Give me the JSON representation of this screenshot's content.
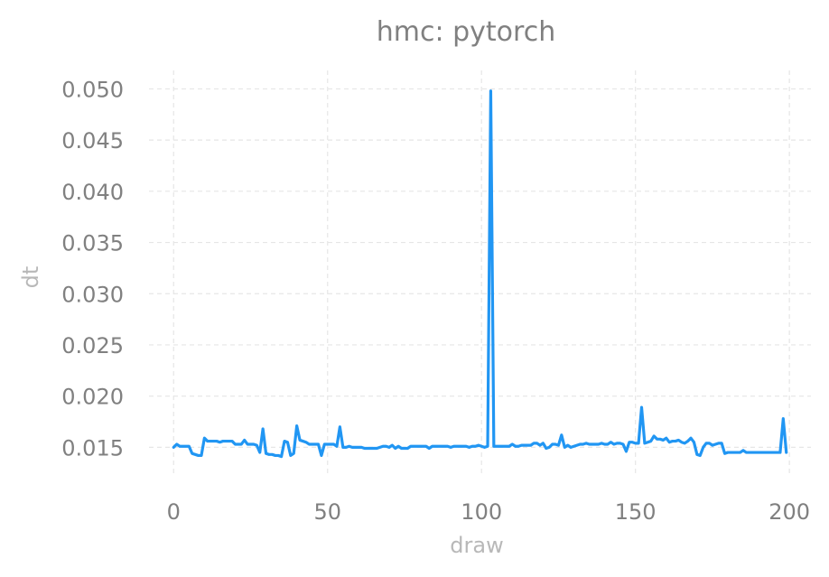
{
  "chart_data": {
    "type": "line",
    "title": "hmc: pytorch",
    "xlabel": "draw",
    "ylabel": "dt",
    "xlim": [
      -8,
      207
    ],
    "ylim": [
      0.0123,
      0.0518
    ],
    "xticks": [
      0,
      50,
      100,
      150,
      200
    ],
    "xtick_labels": [
      "0",
      "50",
      "100",
      "150",
      "200"
    ],
    "yticks": [
      0.015,
      0.02,
      0.025,
      0.03,
      0.035,
      0.04,
      0.045,
      0.05
    ],
    "ytick_labels": [
      "0.015",
      "0.020",
      "0.025",
      "0.030",
      "0.035",
      "0.040",
      "0.045",
      "0.050"
    ],
    "grid": true,
    "line_color": "#2196f3",
    "series": [
      {
        "x": [
          0,
          1,
          2,
          3,
          4,
          5,
          6,
          7,
          8,
          9,
          10,
          11,
          12,
          13,
          14,
          15,
          16,
          17,
          18,
          19,
          20,
          21,
          22,
          23,
          24,
          25,
          26,
          27,
          28,
          29,
          30,
          31,
          32,
          33,
          34,
          35,
          36,
          37,
          38,
          39,
          40,
          41,
          42,
          43,
          44,
          45,
          46,
          47,
          48,
          49,
          50,
          51,
          52,
          53,
          54,
          55,
          56,
          57,
          58,
          59,
          60,
          61,
          62,
          63,
          64,
          65,
          66,
          67,
          68,
          69,
          70,
          71,
          72,
          73,
          74,
          75,
          76,
          77,
          78,
          79,
          80,
          81,
          82,
          83,
          84,
          85,
          86,
          87,
          88,
          89,
          90,
          91,
          92,
          93,
          94,
          95,
          96,
          97,
          98,
          99,
          100,
          101,
          102,
          103,
          104,
          105,
          106,
          107,
          108,
          109,
          110,
          111,
          112,
          113,
          114,
          115,
          116,
          117,
          118,
          119,
          120,
          121,
          122,
          123,
          124,
          125,
          126,
          127,
          128,
          129,
          130,
          131,
          132,
          133,
          134,
          135,
          136,
          137,
          138,
          139,
          140,
          141,
          142,
          143,
          144,
          145,
          146,
          147,
          148,
          149,
          150,
          151,
          152,
          153,
          154,
          155,
          156,
          157,
          158,
          159,
          160,
          161,
          162,
          163,
          164,
          165,
          166,
          167,
          168,
          169,
          170,
          171,
          172,
          173,
          174,
          175,
          176,
          177,
          178,
          179,
          180,
          181,
          182,
          183,
          184,
          185,
          186,
          187,
          188,
          189,
          190,
          191,
          192,
          193,
          194,
          195,
          196,
          197,
          198,
          199
        ],
        "values": [
          0.015,
          0.0153,
          0.0151,
          0.0151,
          0.0151,
          0.0151,
          0.0144,
          0.0143,
          0.0142,
          0.0142,
          0.0159,
          0.0156,
          0.0156,
          0.0156,
          0.0156,
          0.0155,
          0.0156,
          0.0156,
          0.0156,
          0.0156,
          0.0153,
          0.0153,
          0.0153,
          0.0157,
          0.0153,
          0.0153,
          0.0153,
          0.0152,
          0.0145,
          0.0168,
          0.0144,
          0.0143,
          0.0143,
          0.0142,
          0.0142,
          0.0141,
          0.0156,
          0.0155,
          0.0142,
          0.0144,
          0.0171,
          0.0157,
          0.0156,
          0.0155,
          0.0153,
          0.0153,
          0.0153,
          0.0153,
          0.0142,
          0.0153,
          0.0153,
          0.0153,
          0.0153,
          0.0151,
          0.017,
          0.015,
          0.015,
          0.0151,
          0.015,
          0.015,
          0.015,
          0.015,
          0.0149,
          0.0149,
          0.0149,
          0.0149,
          0.0149,
          0.015,
          0.0151,
          0.0151,
          0.015,
          0.0152,
          0.0149,
          0.0151,
          0.0149,
          0.0149,
          0.0149,
          0.0151,
          0.0151,
          0.0151,
          0.0151,
          0.0151,
          0.0151,
          0.0149,
          0.0151,
          0.0151,
          0.0151,
          0.0151,
          0.0151,
          0.0151,
          0.015,
          0.0151,
          0.0151,
          0.0151,
          0.0151,
          0.0151,
          0.015,
          0.0151,
          0.0151,
          0.0152,
          0.0151,
          0.015,
          0.0151,
          0.0498,
          0.0151,
          0.0151,
          0.0151,
          0.0151,
          0.0151,
          0.0151,
          0.0153,
          0.0151,
          0.0151,
          0.0152,
          0.0152,
          0.0152,
          0.0152,
          0.0154,
          0.0154,
          0.0152,
          0.0154,
          0.0149,
          0.015,
          0.0153,
          0.0153,
          0.0152,
          0.0162,
          0.015,
          0.0152,
          0.015,
          0.0151,
          0.0152,
          0.0153,
          0.0153,
          0.0154,
          0.0153,
          0.0153,
          0.0153,
          0.0153,
          0.0154,
          0.0153,
          0.0153,
          0.0155,
          0.0153,
          0.0154,
          0.0154,
          0.0153,
          0.0146,
          0.0155,
          0.0155,
          0.0154,
          0.0154,
          0.0189,
          0.0154,
          0.0155,
          0.0156,
          0.0161,
          0.0158,
          0.0158,
          0.0157,
          0.0159,
          0.0155,
          0.0156,
          0.0156,
          0.0157,
          0.0155,
          0.0154,
          0.0156,
          0.0159,
          0.0155,
          0.0143,
          0.0142,
          0.015,
          0.0154,
          0.0154,
          0.0152,
          0.0153,
          0.0154,
          0.0154,
          0.0144,
          0.0145,
          0.0145,
          0.0145,
          0.0145,
          0.0145,
          0.0147,
          0.0145,
          0.0145,
          0.0145,
          0.0145,
          0.0145,
          0.0145,
          0.0145,
          0.0145,
          0.0145,
          0.0145,
          0.0145,
          0.0145,
          0.0178,
          0.0145
        ]
      }
    ]
  }
}
